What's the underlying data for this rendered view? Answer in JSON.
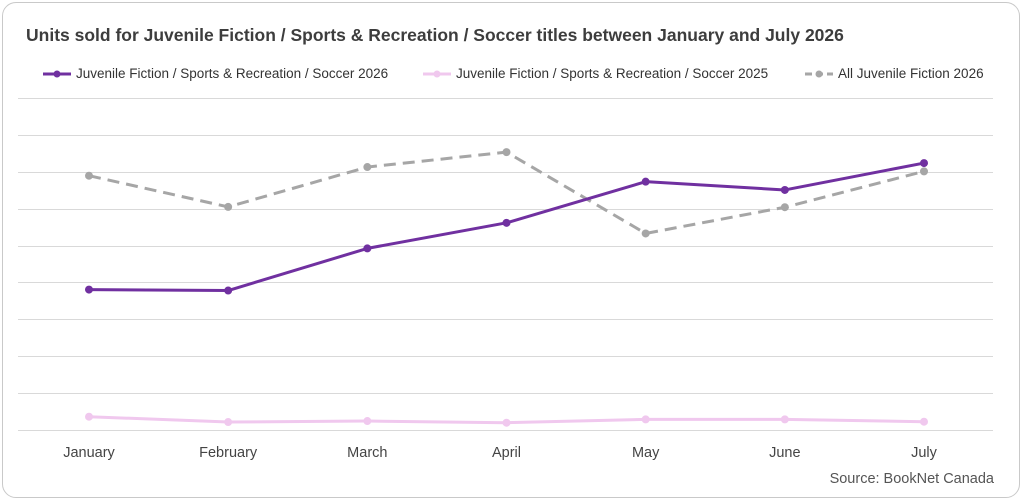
{
  "chart_data": {
    "type": "line",
    "title": "Units sold for Juvenile Fiction / Sports & Recreation / Soccer titles between January and July 2026",
    "categories": [
      "January",
      "February",
      "March",
      "April",
      "May",
      "June",
      "July"
    ],
    "ylim": [
      0,
      100
    ],
    "grid": true,
    "y_tick_labels": false,
    "legend_position": "top",
    "series": [
      {
        "name": "Juvenile Fiction / Sports & Recreation / Soccer 2026",
        "values": [
          42.3,
          42.0,
          54.7,
          62.4,
          74.8,
          72.3,
          80.4
        ],
        "color": "#7030a0",
        "style": "solid"
      },
      {
        "name": "Juvenile Fiction / Sports & Recreation / Soccer 2025",
        "values": [
          4.0,
          2.4,
          2.7,
          2.2,
          3.2,
          3.2,
          2.5
        ],
        "color": "#f0c8ee",
        "style": "solid"
      },
      {
        "name": "All Juvenile Fiction 2026",
        "values": [
          76.6,
          67.2,
          79.2,
          83.7,
          59.2,
          67.1,
          77.9
        ],
        "color": "#a6a6a6",
        "style": "dashed"
      }
    ]
  },
  "source": "Source: BookNet Canada"
}
